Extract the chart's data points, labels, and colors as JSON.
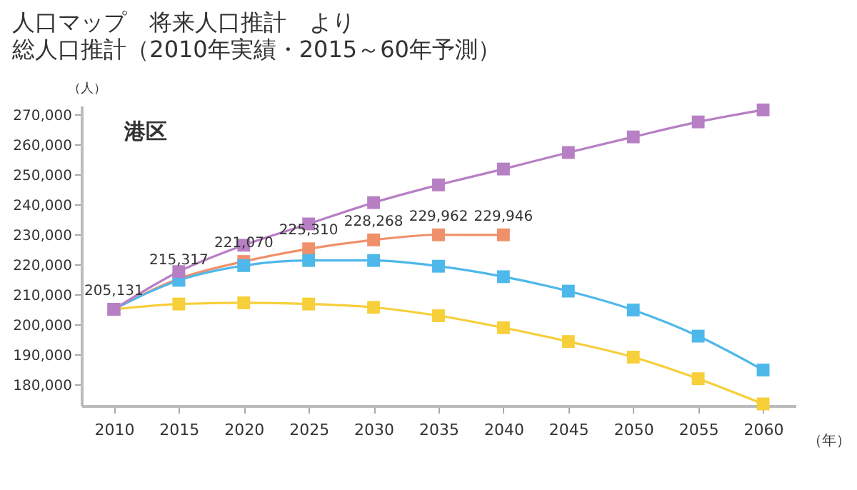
{
  "chart_data": {
    "type": "line",
    "title": "人口マップ　将来人口推計　より",
    "subtitle": "総人口推計（2010年実績・2015～60年予測）",
    "ylabel": "（人）",
    "xlabel": "（年）",
    "annotations": [
      "港区"
    ],
    "x": [
      2010,
      2015,
      2020,
      2025,
      2030,
      2035,
      2040,
      2045,
      2050,
      2055,
      2060
    ],
    "xlim": [
      2007.5,
      2062.5
    ],
    "xticks": [
      2010,
      2015,
      2020,
      2025,
      2030,
      2035,
      2040,
      2045,
      2050,
      2055,
      2060
    ],
    "ylim": [
      173000,
      273000
    ],
    "yticks": [
      {
        "value": 180000,
        "label": "180,000"
      },
      {
        "value": 190000,
        "label": "190,000"
      },
      {
        "value": 200000,
        "label": "200,000"
      },
      {
        "value": 210000,
        "label": "210,000"
      },
      {
        "value": 220000,
        "label": "220,000"
      },
      {
        "value": 230000,
        "label": "230,000"
      },
      {
        "value": 240000,
        "label": "240,000"
      },
      {
        "value": 250000,
        "label": "250,000"
      },
      {
        "value": 260000,
        "label": "260,000"
      },
      {
        "value": 270000,
        "label": "270,000"
      }
    ],
    "grid": false,
    "legend": false,
    "marker": "square",
    "line_style": "solid",
    "series": [
      {
        "color": "#f0906a",
        "values": [
          205131,
          215317,
          221070,
          225310,
          228268,
          229962,
          229946,
          null,
          null,
          null,
          null
        ],
        "value_labels": [
          "205,131",
          "215,317",
          "221,070",
          "225,310",
          "228,268",
          "229,962",
          "229,946",
          null,
          null,
          null,
          null
        ]
      },
      {
        "color": "#f6cf3a",
        "values": [
          205131,
          206900,
          207300,
          206900,
          205800,
          203000,
          199000,
          194400,
          189200,
          182000,
          173600
        ]
      },
      {
        "color": "#4fb8ea",
        "values": [
          205131,
          214800,
          219700,
          221400,
          221400,
          219500,
          216000,
          211200,
          204900,
          196200,
          184900
        ]
      },
      {
        "color": "#b77fc4",
        "values": [
          205131,
          217700,
          226500,
          233600,
          240700,
          246600,
          251900,
          257400,
          262600,
          267600,
          271600
        ]
      }
    ]
  }
}
